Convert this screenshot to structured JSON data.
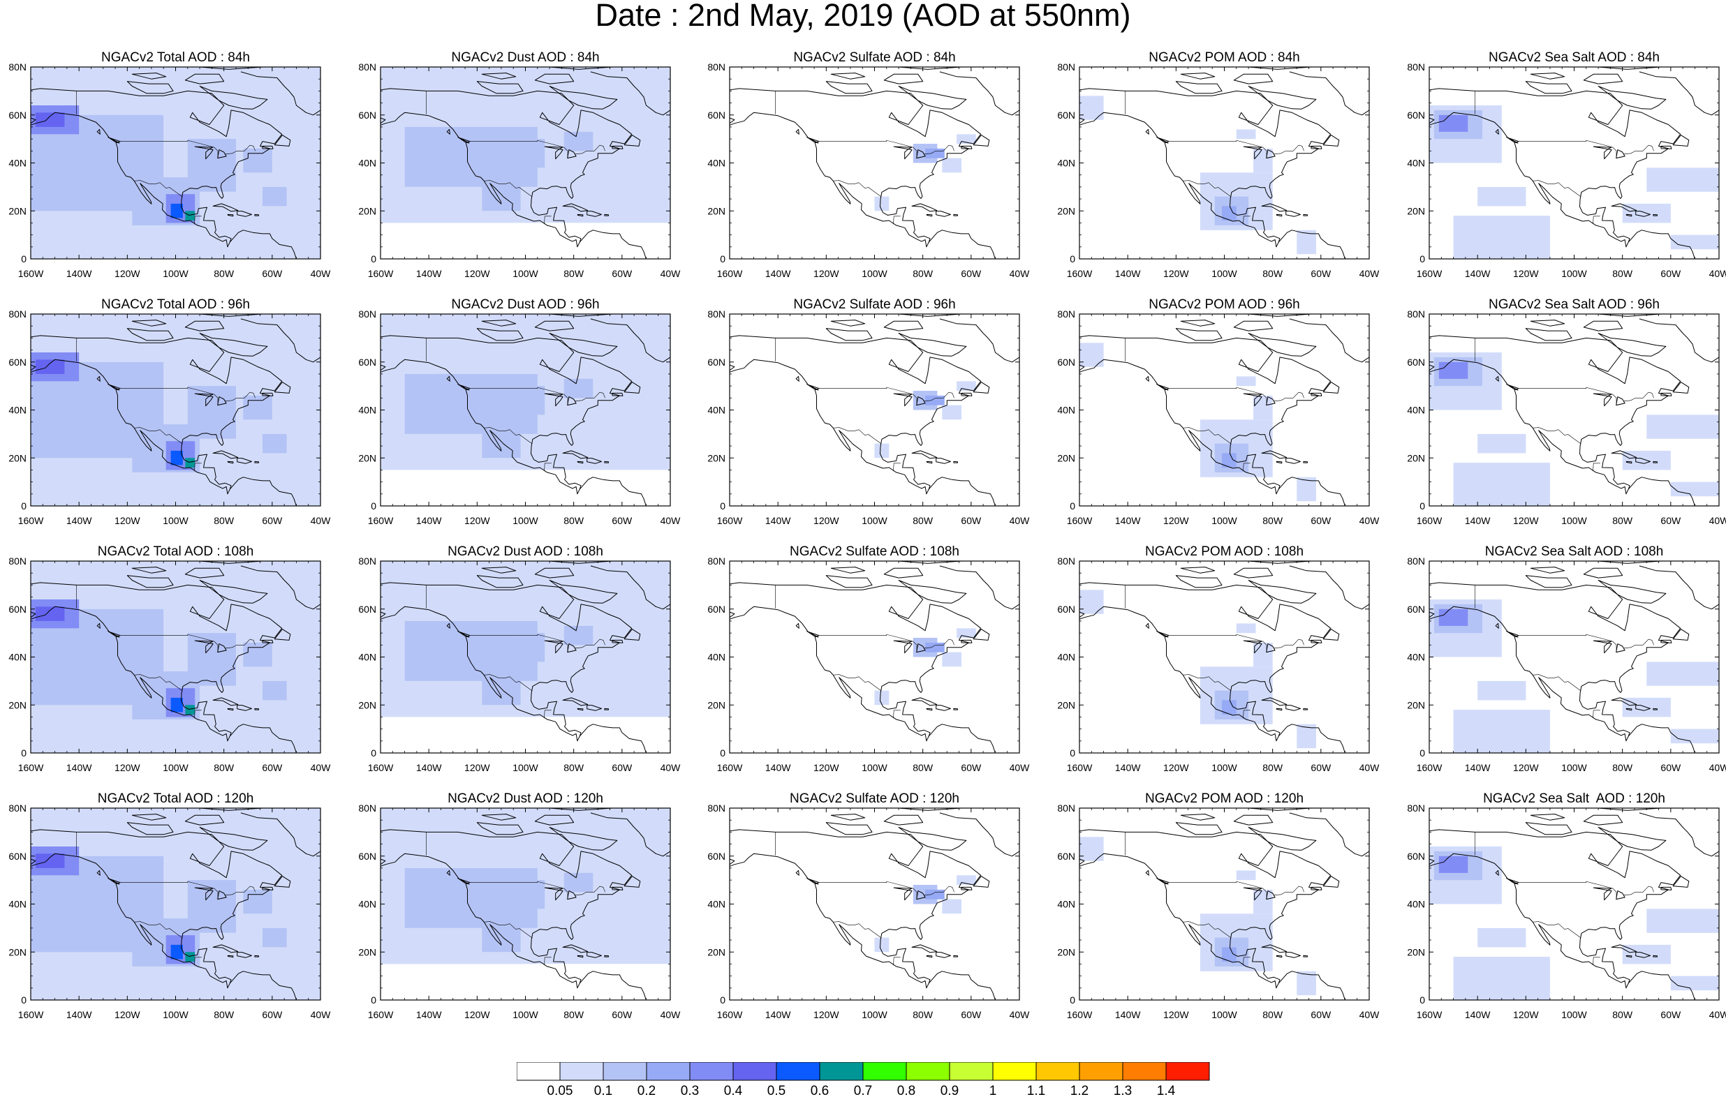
{
  "page": {
    "title": "Date : 2nd May, 2019 (AOD at 550nm)"
  },
  "axes": {
    "x_ticks": [
      "160W",
      "140W",
      "120W",
      "100W",
      "80W",
      "60W",
      "40W"
    ],
    "y_ticks": [
      "80N",
      "60N",
      "40N",
      "20N",
      "0"
    ],
    "lon_range": [
      -160,
      -40
    ],
    "lat_range": [
      0,
      80
    ],
    "projection": "cylindrical equidistant",
    "grid": false
  },
  "panels": [
    {
      "title": "NGACv2 Total AOD : 84h",
      "species": "total",
      "hour": 84
    },
    {
      "title": "NGACv2 Dust AOD : 84h",
      "species": "dust",
      "hour": 84
    },
    {
      "title": "NGACv2 Sulfate AOD : 84h",
      "species": "sulfate",
      "hour": 84
    },
    {
      "title": "NGACv2 POM AOD : 84h",
      "species": "pom",
      "hour": 84
    },
    {
      "title": "NGACv2 Sea Salt AOD : 84h",
      "species": "seasalt",
      "hour": 84
    },
    {
      "title": "NGACv2 Total AOD : 96h",
      "species": "total",
      "hour": 96
    },
    {
      "title": "NGACv2 Dust AOD : 96h",
      "species": "dust",
      "hour": 96
    },
    {
      "title": "NGACv2 Sulfate AOD : 96h",
      "species": "sulfate",
      "hour": 96
    },
    {
      "title": "NGACv2 POM AOD : 96h",
      "species": "pom",
      "hour": 96
    },
    {
      "title": "NGACv2 Sea Salt AOD : 96h",
      "species": "seasalt",
      "hour": 96
    },
    {
      "title": "NGACv2 Total AOD : 108h",
      "species": "total",
      "hour": 108
    },
    {
      "title": "NGACv2 Dust AOD : 108h",
      "species": "dust",
      "hour": 108
    },
    {
      "title": "NGACv2 Sulfate AOD : 108h",
      "species": "sulfate",
      "hour": 108
    },
    {
      "title": "NGACv2 POM AOD : 108h",
      "species": "pom",
      "hour": 108
    },
    {
      "title": "NGACv2 Sea Salt AOD : 108h",
      "species": "seasalt",
      "hour": 108
    },
    {
      "title": "NGACv2 Total AOD : 120h",
      "species": "total",
      "hour": 120
    },
    {
      "title": "NGACv2 Dust AOD : 120h",
      "species": "dust",
      "hour": 120
    },
    {
      "title": "NGACv2 Sulfate AOD : 120h",
      "species": "sulfate",
      "hour": 120
    },
    {
      "title": "NGACv2 POM AOD : 120h",
      "species": "pom",
      "hour": 120
    },
    {
      "title": "NGACv2 Sea Salt  AOD : 120h",
      "species": "seasalt",
      "hour": 120
    }
  ],
  "colorbar": {
    "labels": [
      "0.05",
      "0.1",
      "0.2",
      "0.3",
      "0.4",
      "0.5",
      "0.6",
      "0.7",
      "0.8",
      "0.9",
      "1",
      "1.1",
      "1.2",
      "1.3",
      "1.4"
    ],
    "colors": [
      "#ffffff",
      "#d2dcfa",
      "#b4c3f5",
      "#96aaf5",
      "#828cf5",
      "#6464f0",
      "#0a5aff",
      "#009696",
      "#32ff00",
      "#8cff00",
      "#c8ff32",
      "#ffff00",
      "#ffc800",
      "#ffa000",
      "#ff7d00",
      "#ff1e00"
    ]
  },
  "fields": {
    "total": [
      {
        "lon": -160,
        "lat": 0,
        "w": 120,
        "h": 80,
        "level": 1
      },
      {
        "lon": -160,
        "lat": 20,
        "w": 55,
        "h": 40,
        "level": 2
      },
      {
        "lon": -118,
        "lat": 14,
        "w": 28,
        "h": 20,
        "level": 2
      },
      {
        "lon": -95,
        "lat": 28,
        "w": 20,
        "h": 22,
        "level": 2
      },
      {
        "lon": -160,
        "lat": 52,
        "w": 20,
        "h": 12,
        "level": 4
      },
      {
        "lon": -158,
        "lat": 55,
        "w": 12,
        "h": 6,
        "level": 5
      },
      {
        "lon": -104,
        "lat": 15,
        "w": 12,
        "h": 12,
        "level": 4
      },
      {
        "lon": -102,
        "lat": 17,
        "w": 5,
        "h": 6,
        "level": 6
      },
      {
        "lon": -96,
        "lat": 16,
        "w": 4,
        "h": 4,
        "level": 7
      },
      {
        "lon": -64,
        "lat": 22,
        "w": 10,
        "h": 8,
        "level": 2
      },
      {
        "lon": -72,
        "lat": 36,
        "w": 12,
        "h": 10,
        "level": 2
      }
    ],
    "dust": [
      {
        "lon": -160,
        "lat": 15,
        "w": 120,
        "h": 65,
        "level": 1
      },
      {
        "lon": -150,
        "lat": 30,
        "w": 55,
        "h": 25,
        "level": 2
      },
      {
        "lon": -118,
        "lat": 20,
        "w": 16,
        "h": 22,
        "level": 2
      },
      {
        "lon": -104,
        "lat": 38,
        "w": 12,
        "h": 12,
        "level": 2
      },
      {
        "lon": -84,
        "lat": 45,
        "w": 12,
        "h": 8,
        "level": 2
      },
      {
        "lon": -92,
        "lat": 0,
        "w": 52,
        "h": 15,
        "level": 0
      }
    ],
    "sulfate": [
      {
        "lon": -84,
        "lat": 40,
        "w": 10,
        "h": 8,
        "level": 2
      },
      {
        "lon": -79,
        "lat": 42,
        "w": 8,
        "h": 4,
        "level": 3
      },
      {
        "lon": -72,
        "lat": 36,
        "w": 8,
        "h": 6,
        "level": 1
      },
      {
        "lon": -100,
        "lat": 20,
        "w": 6,
        "h": 6,
        "level": 1
      },
      {
        "lon": -66,
        "lat": 48,
        "w": 8,
        "h": 4,
        "level": 1
      }
    ],
    "pom": [
      {
        "lon": -160,
        "lat": 58,
        "w": 10,
        "h": 10,
        "level": 1
      },
      {
        "lon": -110,
        "lat": 12,
        "w": 30,
        "h": 24,
        "level": 1
      },
      {
        "lon": -104,
        "lat": 14,
        "w": 14,
        "h": 12,
        "level": 2
      },
      {
        "lon": -101,
        "lat": 16,
        "w": 6,
        "h": 6,
        "level": 3
      },
      {
        "lon": -88,
        "lat": 36,
        "w": 8,
        "h": 10,
        "level": 1
      },
      {
        "lon": -70,
        "lat": 2,
        "w": 8,
        "h": 10,
        "level": 1
      },
      {
        "lon": -95,
        "lat": 50,
        "w": 8,
        "h": 4,
        "level": 1
      }
    ],
    "seasalt": [
      {
        "lon": -160,
        "lat": 40,
        "w": 30,
        "h": 24,
        "level": 1
      },
      {
        "lon": -158,
        "lat": 50,
        "w": 20,
        "h": 12,
        "level": 2
      },
      {
        "lon": -156,
        "lat": 53,
        "w": 12,
        "h": 7,
        "level": 4
      },
      {
        "lon": -150,
        "lat": 0,
        "w": 40,
        "h": 18,
        "level": 1
      },
      {
        "lon": -70,
        "lat": 28,
        "w": 30,
        "h": 10,
        "level": 1
      },
      {
        "lon": -80,
        "lat": 15,
        "w": 20,
        "h": 8,
        "level": 1
      },
      {
        "lon": -140,
        "lat": 22,
        "w": 20,
        "h": 8,
        "level": 1
      },
      {
        "lon": -60,
        "lat": 4,
        "w": 20,
        "h": 6,
        "level": 1
      }
    ]
  },
  "coastlines": {
    "north_america": [
      [
        -168,
        66
      ],
      [
        -163,
        70
      ],
      [
        -156,
        71
      ],
      [
        -141,
        70
      ],
      [
        -128,
        70
      ],
      [
        -115,
        68
      ],
      [
        -105,
        68
      ],
      [
        -95,
        70
      ],
      [
        -85,
        69
      ],
      [
        -80,
        64
      ],
      [
        -86,
        56
      ],
      [
        -94,
        59
      ],
      [
        -93,
        61
      ],
      [
        -90,
        57
      ],
      [
        -82,
        53
      ],
      [
        -79,
        51
      ],
      [
        -78,
        55
      ],
      [
        -77,
        62
      ],
      [
        -72,
        61
      ],
      [
        -66,
        58
      ],
      [
        -61,
        56
      ],
      [
        -56,
        52
      ],
      [
        -59,
        48
      ],
      [
        -64,
        49
      ],
      [
        -65,
        47
      ],
      [
        -61,
        46
      ],
      [
        -64,
        44
      ],
      [
        -70,
        44
      ],
      [
        -70,
        42
      ],
      [
        -74,
        40.5
      ],
      [
        -75,
        38.8
      ],
      [
        -76.3,
        36
      ],
      [
        -75.5,
        35.2
      ],
      [
        -77,
        34.7
      ],
      [
        -79,
        33.3
      ],
      [
        -81,
        31.5
      ],
      [
        -81.3,
        30
      ],
      [
        -80.2,
        26
      ],
      [
        -80.8,
        25.2
      ],
      [
        -81.8,
        26.3
      ],
      [
        -82.7,
        28
      ],
      [
        -83.2,
        29.8
      ],
      [
        -85,
        29.7
      ],
      [
        -87,
        30.3
      ],
      [
        -89,
        30.2
      ],
      [
        -91,
        29.2
      ],
      [
        -94,
        29.5
      ],
      [
        -97,
        27.8
      ],
      [
        -97.5,
        25
      ],
      [
        -97.7,
        21.8
      ],
      [
        -96.5,
        19.3
      ],
      [
        -94.5,
        18.2
      ],
      [
        -91,
        18.8
      ],
      [
        -90.5,
        21
      ],
      [
        -87,
        21.5
      ],
      [
        -88,
        18.5
      ],
      [
        -88.4,
        16
      ],
      [
        -84,
        15.9
      ],
      [
        -83.3,
        12
      ],
      [
        -83.8,
        11
      ],
      [
        -82,
        9
      ],
      [
        -79.5,
        9.5
      ],
      [
        -77,
        8.5
      ],
      [
        -77.5,
        7
      ],
      [
        -78.5,
        5
      ],
      [
        -79,
        8
      ],
      [
        -80.5,
        7.3
      ],
      [
        -83,
        8.5
      ],
      [
        -85.7,
        10
      ],
      [
        -87.5,
        13
      ],
      [
        -91,
        14
      ],
      [
        -94,
        16
      ],
      [
        -96.5,
        15.7
      ],
      [
        -100,
        17
      ],
      [
        -103.5,
        18.3
      ],
      [
        -105.5,
        20.5
      ],
      [
        -105.3,
        23
      ],
      [
        -109,
        25.8
      ],
      [
        -112.5,
        29.5
      ],
      [
        -114.7,
        31.5
      ],
      [
        -113.2,
        29
      ],
      [
        -110.2,
        24
      ],
      [
        -110,
        22.9
      ],
      [
        -112,
        24.8
      ],
      [
        -114.3,
        27.8
      ],
      [
        -117.2,
        32.6
      ],
      [
        -118.5,
        34
      ],
      [
        -120.6,
        34.6
      ],
      [
        -122.5,
        37.5
      ],
      [
        -124,
        40.5
      ],
      [
        -124,
        46
      ],
      [
        -124.7,
        48.4
      ],
      [
        -123,
        49
      ],
      [
        -127.5,
        50.5
      ],
      [
        -130,
        54
      ],
      [
        -133,
        57
      ],
      [
        -137,
        58.5
      ],
      [
        -140,
        59.7
      ],
      [
        -146,
        60.5
      ],
      [
        -150,
        61
      ],
      [
        -152,
        59.5
      ],
      [
        -154,
        57.5
      ],
      [
        -158,
        56.5
      ],
      [
        -162,
        55
      ],
      [
        -158,
        58
      ],
      [
        -162,
        59.5
      ],
      [
        -165,
        61
      ],
      [
        -164,
        63
      ],
      [
        -161,
        64.5
      ],
      [
        -165,
        64.5
      ],
      [
        -168,
        66
      ]
    ],
    "south_america": [
      [
        -77.5,
        7
      ],
      [
        -74,
        11
      ],
      [
        -72,
        12
      ],
      [
        -68,
        11
      ],
      [
        -64,
        10.5
      ],
      [
        -61,
        10.5
      ],
      [
        -60,
        8.5
      ],
      [
        -57,
        6
      ],
      [
        -52,
        5
      ],
      [
        -51,
        3
      ],
      [
        -50,
        0
      ]
    ],
    "greenland": [
      [
        -73,
        78
      ],
      [
        -66,
        76
      ],
      [
        -58,
        75.5
      ],
      [
        -55,
        72
      ],
      [
        -53,
        70
      ],
      [
        -51,
        67.5
      ],
      [
        -50,
        64
      ],
      [
        -46,
        61
      ],
      [
        -43,
        60
      ],
      [
        -40,
        62
      ]
    ],
    "islands": [
      [
        [
          -85,
          83
        ],
        [
          -70,
          83
        ],
        [
          -62,
          82
        ],
        [
          -64,
          80
        ],
        [
          -78,
          79
        ],
        [
          -90,
          80
        ],
        [
          -85,
          83
        ]
      ],
      [
        [
          -92,
          77
        ],
        [
          -82,
          77
        ],
        [
          -80,
          74
        ],
        [
          -90,
          73
        ],
        [
          -96,
          74.5
        ],
        [
          -92,
          77
        ]
      ],
      [
        [
          -90,
          72
        ],
        [
          -85,
          70
        ],
        [
          -76,
          69
        ],
        [
          -66,
          67
        ],
        [
          -62,
          66.5
        ],
        [
          -65,
          64
        ],
        [
          -68,
          62.5
        ],
        [
          -72,
          62.6
        ],
        [
          -78,
          64
        ],
        [
          -82,
          66
        ],
        [
          -90,
          72
        ]
      ],
      [
        [
          -118,
          77
        ],
        [
          -108,
          77.5
        ],
        [
          -104,
          76
        ],
        [
          -110,
          75
        ],
        [
          -118,
          77
        ]
      ],
      [
        [
          -120,
          74
        ],
        [
          -118,
          72
        ],
        [
          -112,
          69
        ],
        [
          -105,
          69
        ],
        [
          -101,
          70
        ],
        [
          -103,
          73
        ],
        [
          -111,
          73
        ],
        [
          -120,
          74
        ]
      ],
      [
        [
          -84.5,
          22
        ],
        [
          -81,
          23
        ],
        [
          -77,
          21.5
        ],
        [
          -74.2,
          20.2
        ],
        [
          -77,
          19.8
        ],
        [
          -80.5,
          21.8
        ],
        [
          -84.5,
          22
        ]
      ],
      [
        [
          -74.5,
          19.9
        ],
        [
          -72.5,
          19.9
        ],
        [
          -68.5,
          18.5
        ],
        [
          -71,
          17.7
        ],
        [
          -74.5,
          18.4
        ],
        [
          -74.5,
          19.9
        ]
      ],
      [
        [
          -67.2,
          18.5
        ],
        [
          -65.6,
          18.4
        ],
        [
          -65.6,
          18
        ],
        [
          -67.2,
          18
        ],
        [
          -67.2,
          18.5
        ]
      ],
      [
        [
          -78.4,
          18.5
        ],
        [
          -76.2,
          18.4
        ],
        [
          -76.2,
          17.8
        ],
        [
          -78.3,
          18.2
        ],
        [
          -78.4,
          18.5
        ]
      ],
      [
        [
          -64,
          47
        ],
        [
          -60,
          47
        ],
        [
          -59.7,
          45.9
        ],
        [
          -64,
          46
        ],
        [
          -64,
          47
        ]
      ],
      [
        [
          -59,
          47.5
        ],
        [
          -53,
          47
        ],
        [
          -52.5,
          49.5
        ],
        [
          -55.8,
          51.6
        ],
        [
          -59,
          47.5
        ]
      ],
      [
        [
          -131.5,
          54
        ],
        [
          -132.5,
          53
        ],
        [
          -131.3,
          52
        ],
        [
          -131.5,
          54
        ]
      ],
      [
        [
          -128,
          50.8
        ],
        [
          -123.3,
          48.3
        ],
        [
          -125,
          48.8
        ],
        [
          -128,
          50.8
        ]
      ],
      [
        [
          -82,
          45.5
        ],
        [
          -82.6,
          42
        ],
        [
          -79,
          42.8
        ],
        [
          -80,
          44.5
        ],
        [
          -82,
          45.5
        ]
      ],
      [
        [
          -92,
          46.8
        ],
        [
          -84.6,
          46.5
        ],
        [
          -86,
          45.8
        ],
        [
          -87.5,
          44.5
        ],
        [
          -87.5,
          41.7
        ],
        [
          -85.5,
          44
        ],
        [
          -84.5,
          45.5
        ],
        [
          -92,
          46.8
        ]
      ]
    ],
    "borders": [
      [
        [
          -141,
          70
        ],
        [
          -141,
          60.3
        ]
      ],
      [
        [
          -123,
          49
        ],
        [
          -95,
          49
        ],
        [
          -95,
          49.4
        ],
        [
          -89.5,
          48
        ],
        [
          -84,
          46.5
        ],
        [
          -82.5,
          45
        ],
        [
          -82.5,
          42
        ],
        [
          -79,
          42.8
        ],
        [
          -79.5,
          43.7
        ],
        [
          -76.5,
          44
        ],
        [
          -74.7,
          45
        ],
        [
          -71.5,
          45
        ],
        [
          -69.2,
          47.4
        ],
        [
          -67.8,
          47
        ],
        [
          -67,
          45
        ]
      ],
      [
        [
          -117.1,
          32.5
        ],
        [
          -114.7,
          32.7
        ],
        [
          -111,
          31.3
        ],
        [
          -108.2,
          31.3
        ],
        [
          -106.5,
          31.8
        ],
        [
          -104,
          29.5
        ],
        [
          -102.5,
          29.8
        ],
        [
          -100.5,
          28.3
        ],
        [
          -97.2,
          25.9
        ]
      ],
      [
        [
          -92.2,
          14.5
        ],
        [
          -92,
          17.8
        ],
        [
          -91,
          17.8
        ],
        [
          -89.2,
          17.8
        ]
      ]
    ]
  }
}
